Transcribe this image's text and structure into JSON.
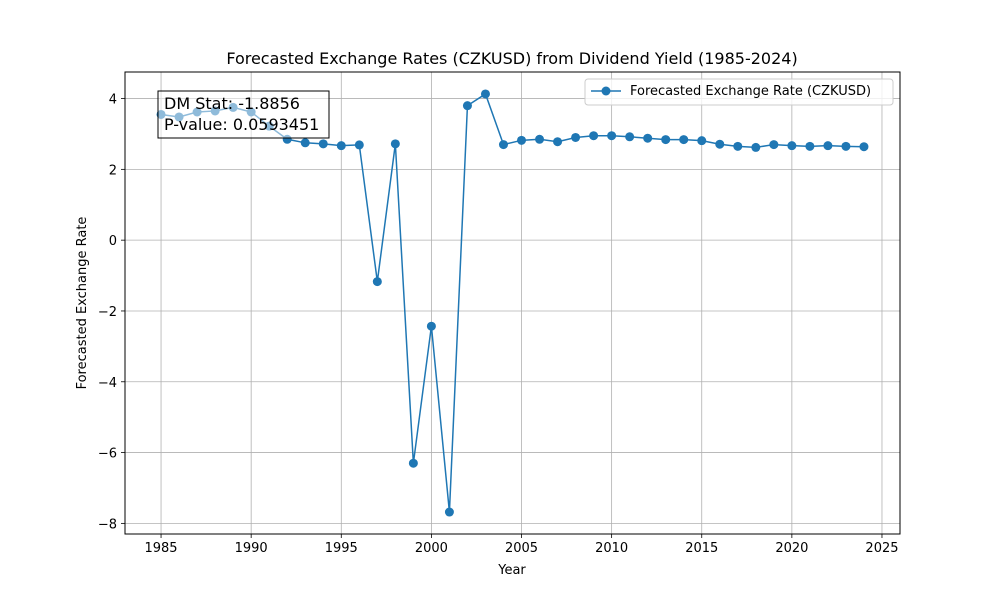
{
  "chart_data": {
    "type": "line",
    "title": "Forecasted Exchange Rates (CZKUSD) from Dividend Yield (1985-2024)",
    "xlabel": "Year",
    "ylabel": "Forecasted Exchange Rate",
    "xlim": [
      1983,
      2026
    ],
    "ylim": [
      -8.3,
      4.75
    ],
    "xticks": [
      1985,
      1990,
      1995,
      2000,
      2005,
      2010,
      2015,
      2020,
      2025
    ],
    "yticks": [
      -8,
      -6,
      -4,
      -2,
      0,
      2,
      4
    ],
    "ytick_labels": [
      "−8",
      "−6",
      "−4",
      "−2",
      "0",
      "2",
      "4"
    ],
    "grid": true,
    "legend_position": "top-right",
    "series": [
      {
        "name": "Forecasted Exchange Rate (CZKUSD)",
        "color": "#1f77b4",
        "marker": "circle",
        "x": [
          1985,
          1986,
          1987,
          1988,
          1989,
          1990,
          1991,
          1992,
          1993,
          1994,
          1995,
          1996,
          1997,
          1998,
          1999,
          2000,
          2001,
          2002,
          2003,
          2004,
          2005,
          2006,
          2007,
          2008,
          2009,
          2010,
          2011,
          2012,
          2013,
          2014,
          2015,
          2016,
          2017,
          2018,
          2019,
          2020,
          2021,
          2022,
          2023,
          2024
        ],
        "y": [
          3.55,
          3.48,
          3.62,
          3.65,
          3.75,
          3.62,
          3.22,
          2.85,
          2.75,
          2.72,
          2.67,
          2.69,
          -1.17,
          2.72,
          -6.3,
          -2.43,
          -7.68,
          3.8,
          4.13,
          2.7,
          2.82,
          2.85,
          2.78,
          2.9,
          2.95,
          2.95,
          2.92,
          2.88,
          2.84,
          2.84,
          2.81,
          2.71,
          2.65,
          2.62,
          2.7,
          2.67,
          2.65,
          2.67,
          2.65,
          2.64
        ]
      }
    ],
    "annotation": {
      "lines": [
        "DM Stat: -1.8856",
        "P-value: 0.0593451"
      ]
    }
  }
}
